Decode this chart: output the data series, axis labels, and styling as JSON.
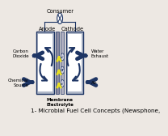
{
  "bg_color": "#ede8e3",
  "title": "1- Microbial Fuel Cell Concepts (Newsphone,",
  "title_fontsize": 5.2,
  "dark_blue": "#1e3564",
  "gray_left": "#b0b8c8",
  "gray_right": "#b0b8c8",
  "membrane_gray": "#9090a0",
  "membrane_light": "#c8c8d0",
  "yellow": "#e8e020",
  "white": "#ffffff",
  "label_fontsize": 4.8,
  "small_fontsize": 4.0,
  "caption_fontsize": 5.0
}
